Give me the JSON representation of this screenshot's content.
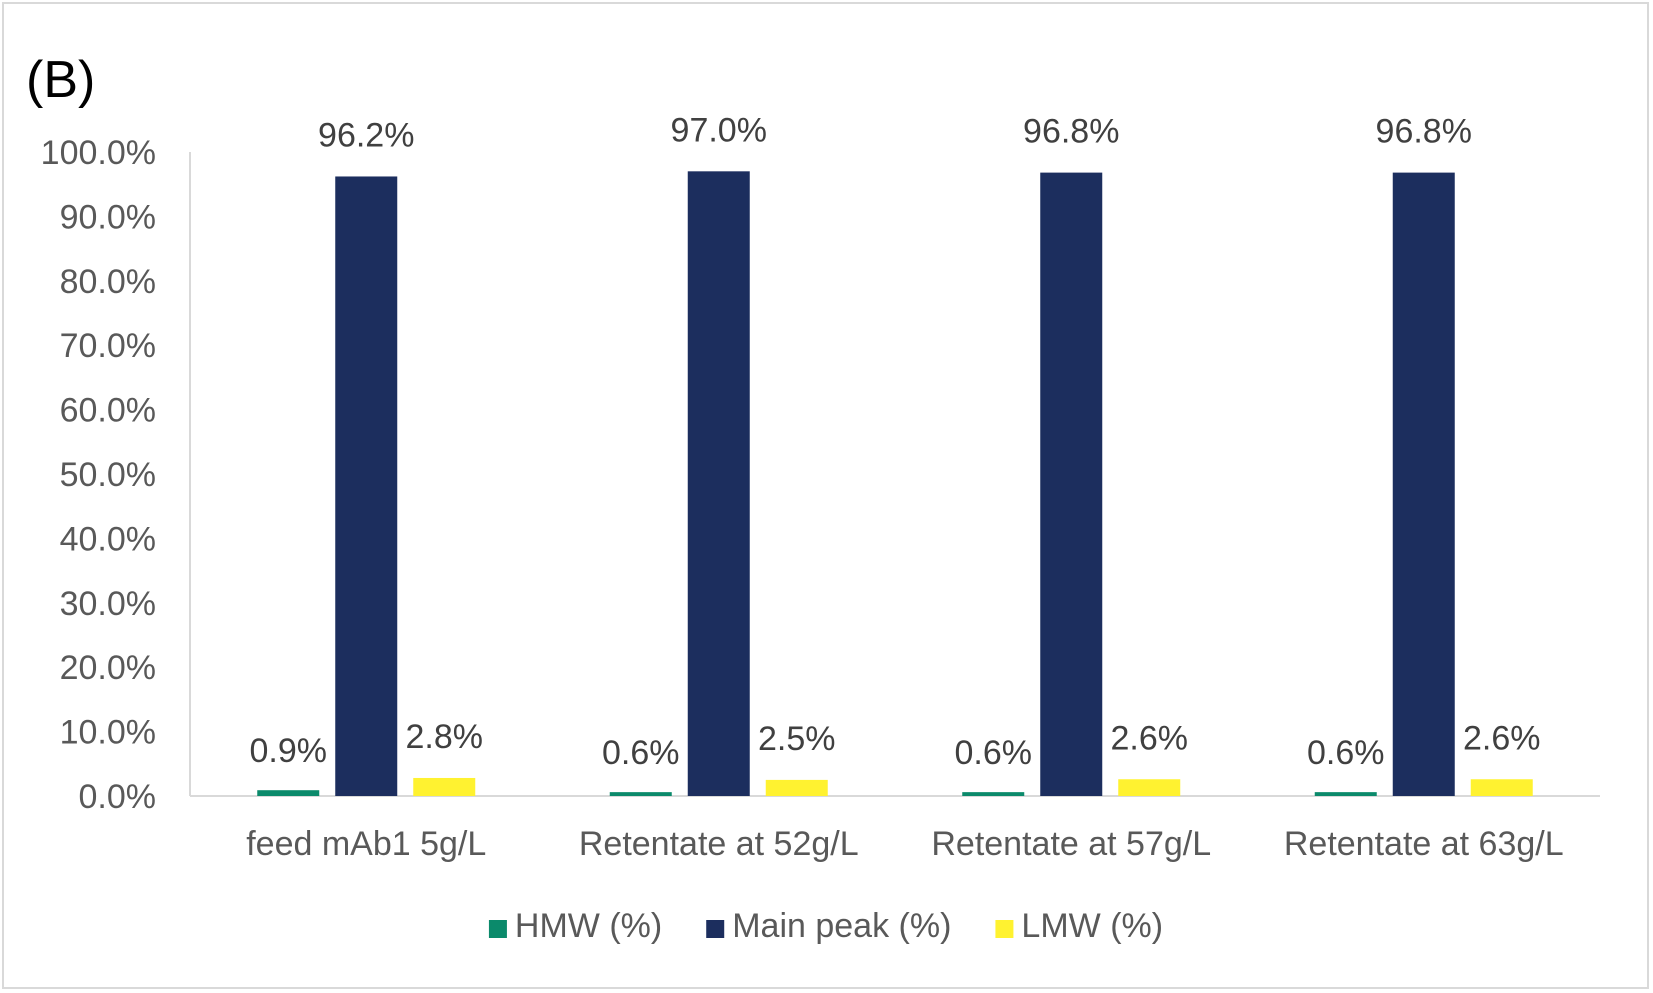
{
  "panel_label": "(B)",
  "chart_data": {
    "type": "bar",
    "categories": [
      "feed mAb1 5g/L",
      "Retentate at 52g/L",
      "Retentate at 57g/L",
      "Retentate at 63g/L"
    ],
    "series": [
      {
        "name": "HMW (%)",
        "color": "#0b8a6b",
        "values": [
          0.9,
          0.6,
          0.6,
          0.6
        ],
        "labels": [
          "0.9%",
          "0.6%",
          "0.6%",
          "0.6%"
        ]
      },
      {
        "name": "Main peak (%)",
        "color": "#1c2e5e",
        "values": [
          96.2,
          97.0,
          96.8,
          96.8
        ],
        "labels": [
          "96.2%",
          "97.0%",
          "96.8%",
          "96.8%"
        ]
      },
      {
        "name": "LMW (%)",
        "color": "#fff230",
        "values": [
          2.8,
          2.5,
          2.6,
          2.6
        ],
        "labels": [
          "2.8%",
          "2.5%",
          "2.6%",
          "2.6%"
        ]
      }
    ],
    "ylim": [
      0,
      100
    ],
    "yticks": [
      "0.0%",
      "10.0%",
      "20.0%",
      "30.0%",
      "40.0%",
      "50.0%",
      "60.0%",
      "70.0%",
      "80.0%",
      "90.0%",
      "100.0%"
    ],
    "title": "",
    "xlabel": "",
    "ylabel": "",
    "grid": false,
    "legend_position": "bottom"
  }
}
